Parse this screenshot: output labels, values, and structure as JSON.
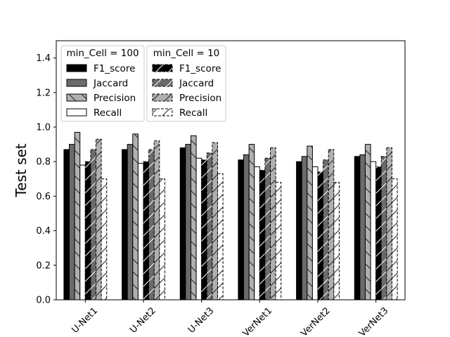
{
  "chart_data": {
    "type": "bar",
    "ylabel": "Test set",
    "xlabel": "",
    "ylim": [
      0,
      1.5
    ],
    "yticks": [
      "0.0",
      "0.2",
      "0.4",
      "0.6",
      "0.8",
      "1.0",
      "1.2",
      "1.4"
    ],
    "categories": [
      "U-Net1",
      "U-Net2",
      "U-Net3",
      "VerNet1",
      "VerNet2",
      "VerNet3"
    ],
    "groups": [
      {
        "title": "min_Cell = 100",
        "series": [
          {
            "name": "F1_score",
            "color": "#000000",
            "hatch": "none",
            "values": [
              0.87,
              0.87,
              0.88,
              0.81,
              0.8,
              0.83
            ]
          },
          {
            "name": "Jaccard",
            "color": "#6b6b6b",
            "hatch": "none",
            "values": [
              0.9,
              0.9,
              0.9,
              0.84,
              0.83,
              0.84
            ]
          },
          {
            "name": "Precision",
            "color": "#b0b0b0",
            "hatch": "back",
            "values": [
              0.97,
              0.96,
              0.95,
              0.9,
              0.89,
              0.9
            ]
          },
          {
            "name": "Recall",
            "color": "#ffffff",
            "hatch": "none",
            "values": [
              0.78,
              0.79,
              0.82,
              0.77,
              0.77,
              0.8
            ]
          }
        ]
      },
      {
        "title": "min_Cell = 10",
        "series": [
          {
            "name": "F1_score",
            "color": "#000000",
            "hatch": "fwd",
            "values": [
              0.8,
              0.8,
              0.81,
              0.75,
              0.74,
              0.77
            ]
          },
          {
            "name": "Jaccard",
            "color": "#6b6b6b",
            "hatch": "fwd",
            "values": [
              0.87,
              0.87,
              0.85,
              0.82,
              0.81,
              0.83
            ]
          },
          {
            "name": "Precision",
            "color": "#b0b0b0",
            "hatch": "fwd",
            "values": [
              0.93,
              0.92,
              0.91,
              0.88,
              0.87,
              0.88
            ]
          },
          {
            "name": "Recall",
            "color": "#ffffff",
            "hatch": "fwd",
            "values": [
              0.7,
              0.7,
              0.73,
              0.68,
              0.68,
              0.7
            ]
          }
        ]
      }
    ],
    "legend": "top-left",
    "grid": false
  }
}
